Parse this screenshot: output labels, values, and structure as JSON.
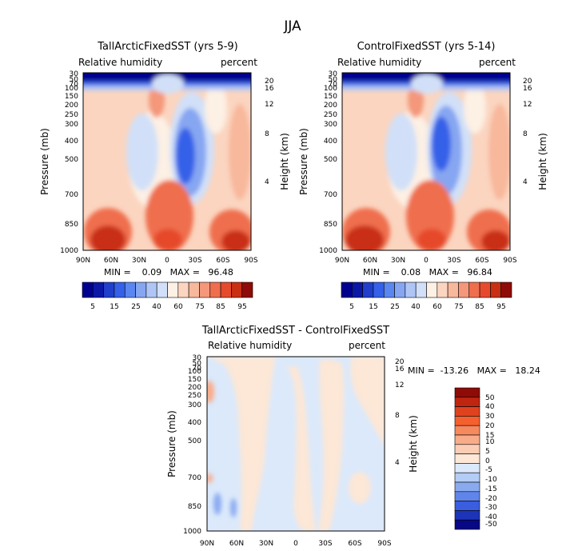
{
  "title": "JJA",
  "chart_data": [
    {
      "type": "heatmap",
      "title": "TallArcticFixedSST (yrs 5-9)",
      "subtitle_left": "Relative humidity",
      "subtitle_right": "percent",
      "ylabel": "Pressure (mb)",
      "y2label": "Height (km)",
      "x_ticks": [
        "90N",
        "60N",
        "30N",
        "0",
        "30S",
        "60S",
        "90S"
      ],
      "y_ticks": [
        "30",
        "50",
        "70",
        "100",
        "150",
        "200",
        "250",
        "300",
        "400",
        "500",
        "700",
        "850",
        "1000"
      ],
      "y2_ticks": [
        "20",
        "16",
        "12",
        "8",
        "4"
      ],
      "min_text": "MIN =    0.09   MAX =   96.48",
      "min": 0.09,
      "max": 96.48,
      "colorbar_labels": [
        "5",
        "15",
        "25",
        "40",
        "60",
        "75",
        "85",
        "95"
      ]
    },
    {
      "type": "heatmap",
      "title": "ControlFixedSST (yrs 5-14)",
      "subtitle_left": "Relative humidity",
      "subtitle_right": "percent",
      "ylabel": "Pressure (mb)",
      "y2label": "Height (km)",
      "x_ticks": [
        "90N",
        "60N",
        "30N",
        "0",
        "30S",
        "60S",
        "90S"
      ],
      "y_ticks": [
        "30",
        "50",
        "70",
        "100",
        "150",
        "200",
        "250",
        "300",
        "400",
        "500",
        "700",
        "850",
        "1000"
      ],
      "y2_ticks": [
        "20",
        "16",
        "12",
        "8",
        "4"
      ],
      "min_text": "MIN =    0.08   MAX =   96.84",
      "min": 0.08,
      "max": 96.84,
      "colorbar_labels": [
        "5",
        "15",
        "25",
        "40",
        "60",
        "75",
        "85",
        "95"
      ]
    },
    {
      "type": "heatmap",
      "title": "TallArcticFixedSST - ControlFixedSST",
      "subtitle_left": "Relative humidity",
      "subtitle_right": "percent",
      "ylabel": "Pressure (mb)",
      "y2label": "Height (km)",
      "x_ticks": [
        "90N",
        "60N",
        "30N",
        "0",
        "30S",
        "60S",
        "90S"
      ],
      "y_ticks": [
        "30",
        "50",
        "70",
        "100",
        "150",
        "200",
        "250",
        "300",
        "400",
        "500",
        "700",
        "850",
        "1000"
      ],
      "y2_ticks": [
        "20",
        "16",
        "12",
        "8",
        "4"
      ],
      "min_text": "MIN =  -13.26   MAX =   18.24",
      "min": -13.26,
      "max": 18.24,
      "colorbar_labels": [
        "50",
        "40",
        "30",
        "20",
        "15",
        "10",
        "5",
        "0",
        "-5",
        "-10",
        "-15",
        "-20",
        "-30",
        "-40",
        "-50"
      ]
    }
  ],
  "palettes": {
    "abs": [
      "#00008f",
      "#0b18a6",
      "#1f3fcc",
      "#3560e8",
      "#5a86f0",
      "#86a6f2",
      "#afc5f5",
      "#d1e0f8",
      "#fdf0e4",
      "#fbd5c0",
      "#f8b89c",
      "#f4977a",
      "#ef6e4e",
      "#e64a2c",
      "#c92f12",
      "#8f0b07"
    ],
    "diff": [
      "#8f0b07",
      "#c0250f",
      "#e0421f",
      "#f5602f",
      "#f7895e",
      "#f9ac8a",
      "#fbcdb4",
      "#fde7d6",
      "#dbe9fb",
      "#b4cdf6",
      "#8aaaf0",
      "#5f85ea",
      "#3b5de0",
      "#1d34b8",
      "#060886"
    ]
  }
}
